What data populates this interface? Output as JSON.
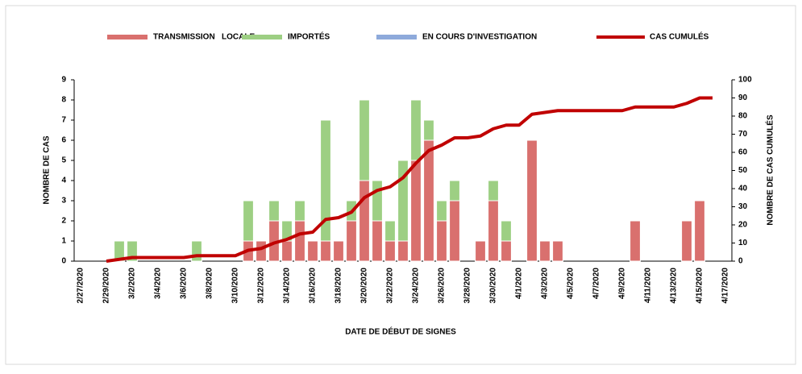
{
  "chart_data": {
    "type": "bar",
    "stacked": true,
    "x_label": "DATE DE DÉBUT DE SIGNES",
    "y_label": "NOMBRE DE CAS",
    "y2_label": "NOMBRE DE CAS CUMULÉS",
    "legend": "top",
    "categories": [
      "2/27/2020",
      null,
      "2/29/2020",
      null,
      "3/2/2020",
      null,
      "3/4/2020",
      null,
      "3/6/2020",
      null,
      "3/8/2020",
      null,
      "3/10/2020",
      null,
      "3/12/2020",
      null,
      "3/14/2020",
      null,
      "3/16/2020",
      null,
      "3/18/2020",
      null,
      "3/20/2020",
      null,
      "3/22/2020",
      null,
      "3/24/2020",
      null,
      "3/26/2020",
      null,
      "3/28/2020",
      null,
      "3/30/2020",
      null,
      "4/1/2020",
      null,
      "4/3/2020",
      null,
      "4/5/2020",
      null,
      "4/7/2020",
      null,
      "4/9/2020",
      null,
      "4/11/2020",
      null,
      "4/13/2020",
      null,
      "4/15/2020",
      null,
      "4/17/2020"
    ],
    "series": [
      {
        "name": "TRANSMISSION   LOCALE",
        "color": "#d9706e",
        "values": [
          0,
          0,
          0,
          0,
          0,
          0,
          0,
          0,
          0,
          0,
          0,
          0,
          0,
          1,
          1,
          2,
          1,
          2,
          1,
          1,
          1,
          2,
          4,
          2,
          1,
          1,
          5,
          6,
          2,
          3,
          0,
          1,
          3,
          1,
          0,
          6,
          1,
          1,
          0,
          0,
          0,
          0,
          0,
          2,
          0,
          0,
          0,
          2,
          3,
          0,
          0
        ]
      },
      {
        "name": "IMPORTÉS",
        "color": "#9dcf83",
        "values": [
          0,
          0,
          0,
          1,
          1,
          0,
          0,
          0,
          0,
          1,
          0,
          0,
          0,
          2,
          0,
          1,
          1,
          1,
          0,
          6,
          0,
          1,
          4,
          2,
          1,
          4,
          3,
          1,
          1,
          1,
          0,
          0,
          1,
          1,
          0,
          0,
          0,
          0,
          0,
          0,
          0,
          0,
          0,
          0,
          0,
          0,
          0,
          0,
          0,
          0,
          0
        ]
      },
      {
        "name": "EN COURS D'INVESTIGATION",
        "color": "#8eaadb",
        "values": [
          0,
          0,
          0,
          0,
          0,
          0,
          0,
          0,
          0,
          0,
          0,
          0,
          0,
          0,
          0,
          0,
          0,
          0,
          0,
          0,
          0,
          0,
          0,
          0,
          0,
          0,
          0,
          0,
          0,
          0,
          0,
          0,
          0,
          0,
          0,
          0,
          0,
          0,
          0,
          0,
          0,
          0,
          0,
          0,
          0,
          0,
          0,
          0,
          0,
          0,
          0
        ]
      },
      {
        "name": "CAS CUMULÉS",
        "type": "line",
        "axis": "y2",
        "color": "#c00000",
        "values": [
          null,
          null,
          0,
          1,
          2,
          2,
          2,
          2,
          2,
          3,
          3,
          3,
          3,
          6,
          7,
          10,
          12,
          15,
          16,
          23,
          24,
          27,
          35,
          39,
          41,
          46,
          54,
          61,
          64,
          68,
          68,
          69,
          73,
          75,
          75,
          81,
          82,
          83,
          83,
          83,
          83,
          83,
          83,
          85,
          85,
          85,
          85,
          87,
          90,
          90,
          null
        ]
      }
    ],
    "ylim": [
      0,
      9
    ],
    "yticks": [
      0,
      1,
      2,
      3,
      4,
      5,
      6,
      7,
      8,
      9
    ],
    "y2lim": [
      0,
      100
    ],
    "y2ticks": [
      0,
      10,
      20,
      30,
      40,
      50,
      60,
      70,
      80,
      90,
      100
    ]
  }
}
